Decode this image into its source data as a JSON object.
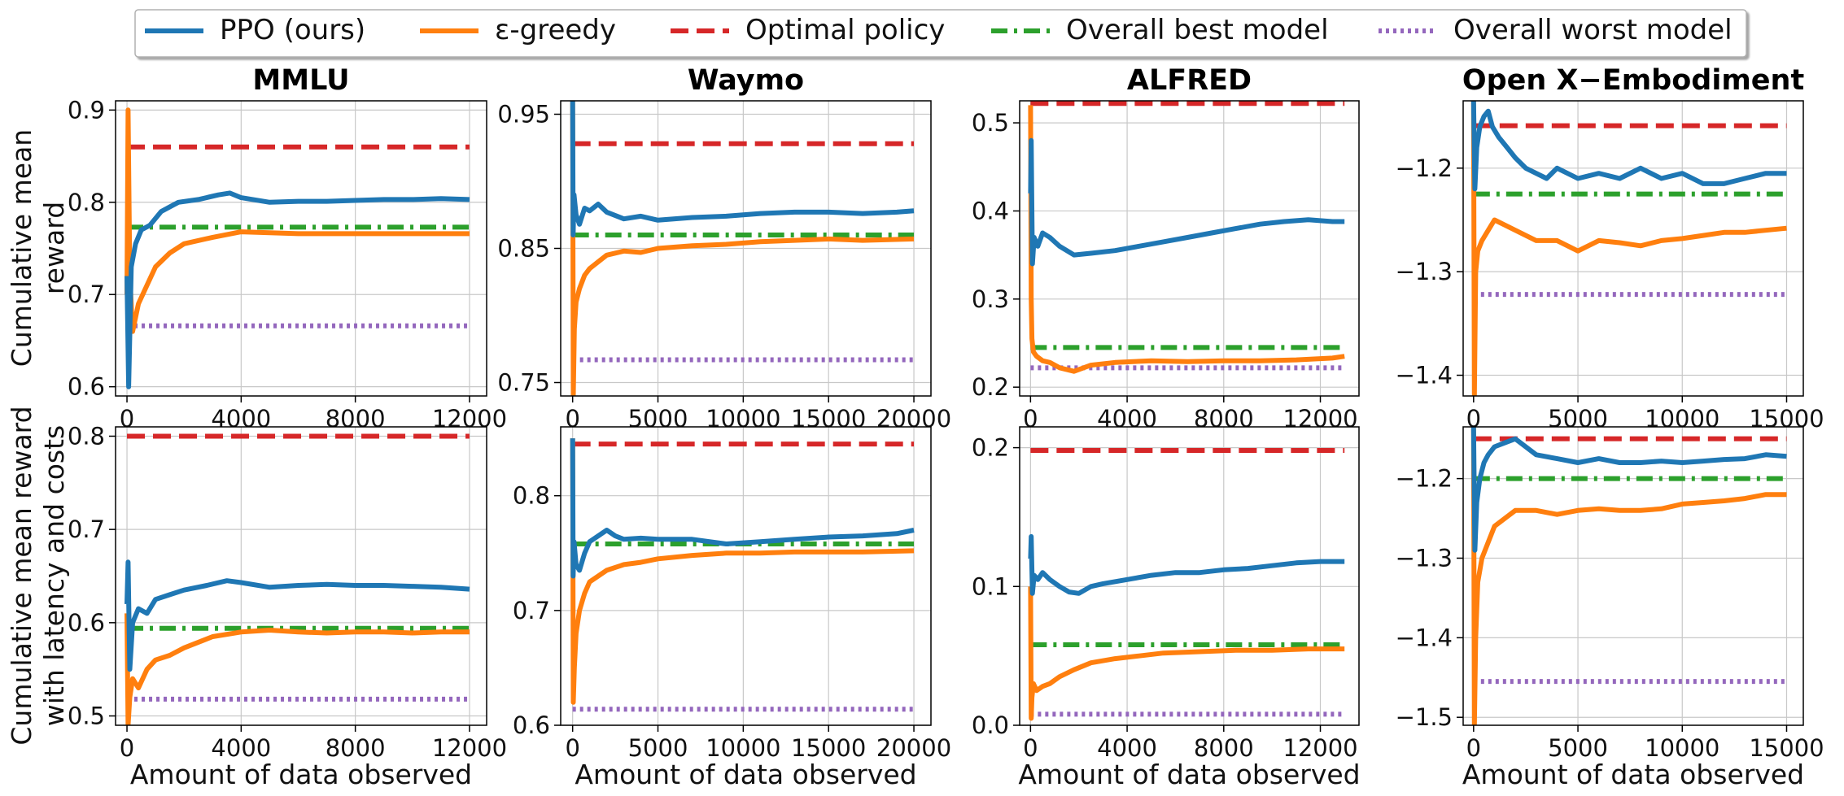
{
  "legend": {
    "entries": [
      {
        "label": "PPO (ours)",
        "color": "#1f77b4",
        "style": "solid"
      },
      {
        "label": "ε-greedy",
        "color": "#ff7f0e",
        "style": "solid"
      },
      {
        "label": "Optimal policy",
        "color": "#d62728",
        "style": "dashed"
      },
      {
        "label": "Overall best model",
        "color": "#2ca02c",
        "style": "dashdot"
      },
      {
        "label": "Overall worst model",
        "color": "#9467bd",
        "style": "dotted"
      }
    ]
  },
  "row_labels": [
    [
      "Cumulative mean",
      "reward"
    ],
    [
      "Cumulative mean reward",
      "with latency and costs"
    ]
  ],
  "xlabel": "Amount of data observed",
  "chart_data": [
    {
      "type": "line",
      "title": "MMLU",
      "row": 0,
      "col": 0,
      "xlim": [
        -400,
        12600
      ],
      "ylim": [
        0.59,
        0.91
      ],
      "xticks": [
        0,
        4000,
        8000,
        12000
      ],
      "yticks": [
        0.6,
        0.7,
        0.8,
        0.9
      ],
      "xtick_labels": [
        "0",
        "4000",
        "8000",
        "12000"
      ],
      "ytick_labels": [
        "0.6",
        "0.7",
        "0.8",
        "0.9"
      ],
      "grid": true,
      "n_max": 12000,
      "optimal": 0.86,
      "best": 0.773,
      "worst": 0.666,
      "series": [
        {
          "name": "PPO (ours)",
          "x": [
            0,
            60,
            150,
            300,
            500,
            800,
            1200,
            1800,
            2500,
            3200,
            3600,
            4000,
            5000,
            6000,
            7000,
            8000,
            9000,
            10000,
            11000,
            12000
          ],
          "y": [
            0.72,
            0.6,
            0.73,
            0.755,
            0.77,
            0.775,
            0.79,
            0.8,
            0.803,
            0.808,
            0.81,
            0.805,
            0.8,
            0.801,
            0.801,
            0.802,
            0.803,
            0.803,
            0.804,
            0.803
          ]
        },
        {
          "name": "ε-greedy",
          "x": [
            0,
            40,
            100,
            200,
            400,
            700,
            1000,
            1500,
            2000,
            3000,
            4000,
            5000,
            6000,
            8000,
            10000,
            12000
          ],
          "y": [
            0.7,
            0.9,
            0.72,
            0.66,
            0.69,
            0.71,
            0.73,
            0.745,
            0.755,
            0.762,
            0.768,
            0.767,
            0.766,
            0.766,
            0.766,
            0.766
          ]
        }
      ]
    },
    {
      "type": "line",
      "title": "Waymo",
      "row": 0,
      "col": 1,
      "xlim": [
        -700,
        21000
      ],
      "ylim": [
        0.74,
        0.96
      ],
      "xticks": [
        0,
        5000,
        10000,
        15000,
        20000
      ],
      "yticks": [
        0.75,
        0.85,
        0.95
      ],
      "xtick_labels": [
        "0",
        "5000",
        "10000",
        "15000",
        "20000"
      ],
      "ytick_labels": [
        "0.75",
        "0.85",
        "0.95"
      ],
      "grid": true,
      "n_max": 20000,
      "optimal": 0.928,
      "best": 0.86,
      "worst": 0.767,
      "series": [
        {
          "name": "PPO (ours)",
          "x": [
            0,
            30,
            80,
            200,
            400,
            700,
            1000,
            1500,
            2000,
            3000,
            4000,
            5000,
            7000,
            9000,
            11000,
            13000,
            15000,
            17000,
            19000,
            20000
          ],
          "y": [
            0.96,
            0.86,
            0.89,
            0.875,
            0.868,
            0.88,
            0.878,
            0.883,
            0.877,
            0.872,
            0.874,
            0.871,
            0.873,
            0.874,
            0.876,
            0.877,
            0.877,
            0.876,
            0.877,
            0.878
          ]
        },
        {
          "name": "ε-greedy",
          "x": [
            0,
            40,
            100,
            200,
            400,
            700,
            1000,
            1500,
            2000,
            3000,
            4000,
            5000,
            7000,
            9000,
            11000,
            13000,
            15000,
            17000,
            20000
          ],
          "y": [
            0.96,
            0.74,
            0.79,
            0.81,
            0.82,
            0.83,
            0.835,
            0.84,
            0.845,
            0.848,
            0.847,
            0.85,
            0.852,
            0.853,
            0.855,
            0.856,
            0.857,
            0.856,
            0.857
          ]
        }
      ]
    },
    {
      "type": "line",
      "title": "ALFRED",
      "row": 0,
      "col": 2,
      "xlim": [
        -450,
        13600
      ],
      "ylim": [
        0.19,
        0.525
      ],
      "xticks": [
        0,
        4000,
        8000,
        12000
      ],
      "yticks": [
        0.2,
        0.3,
        0.4,
        0.5
      ],
      "xtick_labels": [
        "0",
        "4000",
        "8000",
        "12000"
      ],
      "ytick_labels": [
        "0.2",
        "0.3",
        "0.4",
        "0.5"
      ],
      "grid": true,
      "n_max": 13000,
      "optimal": 0.522,
      "best": 0.245,
      "worst": 0.222,
      "series": [
        {
          "name": "PPO (ours)",
          "x": [
            0,
            30,
            80,
            150,
            300,
            500,
            800,
            1200,
            1800,
            2500,
            3500,
            4500,
            5500,
            6500,
            7500,
            8500,
            9500,
            10500,
            11500,
            12500,
            13000
          ],
          "y": [
            0.42,
            0.48,
            0.34,
            0.37,
            0.36,
            0.375,
            0.37,
            0.36,
            0.35,
            0.352,
            0.355,
            0.36,
            0.365,
            0.37,
            0.375,
            0.38,
            0.385,
            0.388,
            0.39,
            0.388,
            0.388
          ]
        },
        {
          "name": "ε-greedy",
          "x": [
            0,
            30,
            60,
            120,
            250,
            500,
            800,
            1200,
            1800,
            2500,
            3500,
            5000,
            6500,
            8000,
            9500,
            11000,
            12500,
            13000
          ],
          "y": [
            0.52,
            0.3,
            0.255,
            0.24,
            0.235,
            0.23,
            0.228,
            0.222,
            0.218,
            0.225,
            0.228,
            0.23,
            0.229,
            0.23,
            0.23,
            0.231,
            0.233,
            0.235
          ]
        }
      ]
    },
    {
      "type": "line",
      "title": "Open X−Embodiment",
      "row": 0,
      "col": 3,
      "xlim": [
        -500,
        15800
      ],
      "ylim": [
        -1.42,
        -1.135
      ],
      "xticks": [
        0,
        5000,
        10000,
        15000
      ],
      "yticks": [
        -1.4,
        -1.3,
        -1.2
      ],
      "xtick_labels": [
        "0",
        "5000",
        "10000",
        "15000"
      ],
      "ytick_labels": [
        "−1.4",
        "−1.3",
        "−1.2"
      ],
      "grid": true,
      "n_max": 15000,
      "optimal": -1.159,
      "best": -1.225,
      "worst": -1.322,
      "series": [
        {
          "name": "PPO (ours)",
          "x": [
            0,
            60,
            150,
            300,
            500,
            700,
            900,
            1200,
            1600,
            2000,
            2500,
            3000,
            3500,
            4000,
            5000,
            6000,
            7000,
            8000,
            9000,
            10000,
            11000,
            12000,
            13000,
            14000,
            15000
          ],
          "y": [
            -1.135,
            -1.22,
            -1.18,
            -1.16,
            -1.15,
            -1.145,
            -1.16,
            -1.17,
            -1.18,
            -1.19,
            -1.2,
            -1.205,
            -1.21,
            -1.2,
            -1.21,
            -1.205,
            -1.21,
            -1.2,
            -1.21,
            -1.205,
            -1.215,
            -1.215,
            -1.21,
            -1.205,
            -1.205
          ]
        },
        {
          "name": "ε-greedy",
          "x": [
            0,
            40,
            100,
            200,
            400,
            700,
            1000,
            1500,
            2000,
            3000,
            4000,
            5000,
            6000,
            7000,
            8000,
            9000,
            10000,
            11000,
            12000,
            13000,
            14000,
            15000
          ],
          "y": [
            -1.135,
            -1.42,
            -1.3,
            -1.28,
            -1.27,
            -1.26,
            -1.25,
            -1.255,
            -1.26,
            -1.27,
            -1.27,
            -1.28,
            -1.27,
            -1.272,
            -1.275,
            -1.27,
            -1.268,
            -1.265,
            -1.262,
            -1.262,
            -1.26,
            -1.258
          ]
        }
      ]
    },
    {
      "type": "line",
      "title": "",
      "row": 1,
      "col": 0,
      "xlim": [
        -400,
        12600
      ],
      "ylim": [
        0.49,
        0.81
      ],
      "xticks": [
        0,
        4000,
        8000,
        12000
      ],
      "yticks": [
        0.5,
        0.6,
        0.7,
        0.8
      ],
      "xtick_labels": [
        "0",
        "4000",
        "8000",
        "12000"
      ],
      "ytick_labels": [
        "0.5",
        "0.6",
        "0.7",
        "0.8"
      ],
      "grid": true,
      "n_max": 12000,
      "optimal": 0.8,
      "best": 0.594,
      "worst": 0.518,
      "series": [
        {
          "name": "PPO (ours)",
          "x": [
            0,
            40,
            100,
            200,
            400,
            700,
            1000,
            1500,
            2000,
            2800,
            3500,
            4000,
            5000,
            6000,
            7000,
            8000,
            9000,
            10000,
            11000,
            12000
          ],
          "y": [
            0.62,
            0.665,
            0.55,
            0.6,
            0.615,
            0.61,
            0.625,
            0.63,
            0.635,
            0.64,
            0.645,
            0.643,
            0.638,
            0.64,
            0.641,
            0.64,
            0.64,
            0.639,
            0.638,
            0.636
          ]
        },
        {
          "name": "ε-greedy",
          "x": [
            0,
            40,
            100,
            200,
            400,
            700,
            1000,
            1500,
            2000,
            3000,
            4000,
            5000,
            6000,
            7000,
            8000,
            9000,
            10000,
            11000,
            12000
          ],
          "y": [
            0.61,
            0.49,
            0.52,
            0.54,
            0.53,
            0.55,
            0.56,
            0.565,
            0.573,
            0.585,
            0.59,
            0.592,
            0.59,
            0.589,
            0.59,
            0.59,
            0.589,
            0.59,
            0.59
          ]
        }
      ]
    },
    {
      "type": "line",
      "title": "",
      "row": 1,
      "col": 1,
      "xlim": [
        -700,
        21000
      ],
      "ylim": [
        0.6,
        0.86
      ],
      "xticks": [
        0,
        5000,
        10000,
        15000,
        20000
      ],
      "yticks": [
        0.6,
        0.7,
        0.8
      ],
      "xtick_labels": [
        "0",
        "5000",
        "10000",
        "15000",
        "20000"
      ],
      "ytick_labels": [
        "0.6",
        "0.7",
        "0.8"
      ],
      "grid": true,
      "n_max": 20000,
      "optimal": 0.845,
      "best": 0.758,
      "worst": 0.614,
      "series": [
        {
          "name": "PPO (ours)",
          "x": [
            0,
            30,
            80,
            200,
            400,
            700,
            1000,
            1500,
            2000,
            2500,
            3000,
            4000,
            5000,
            7000,
            9000,
            11000,
            13000,
            15000,
            17000,
            19000,
            20000
          ],
          "y": [
            0.85,
            0.73,
            0.76,
            0.74,
            0.735,
            0.75,
            0.76,
            0.765,
            0.77,
            0.765,
            0.762,
            0.763,
            0.762,
            0.762,
            0.758,
            0.76,
            0.762,
            0.764,
            0.765,
            0.767,
            0.77
          ]
        },
        {
          "name": "ε-greedy",
          "x": [
            0,
            40,
            100,
            200,
            400,
            700,
            1000,
            1500,
            2000,
            3000,
            4000,
            5000,
            7000,
            9000,
            11000,
            13000,
            15000,
            17000,
            20000
          ],
          "y": [
            0.85,
            0.62,
            0.65,
            0.68,
            0.7,
            0.715,
            0.725,
            0.73,
            0.735,
            0.74,
            0.742,
            0.745,
            0.748,
            0.75,
            0.75,
            0.751,
            0.751,
            0.751,
            0.752
          ]
        }
      ]
    },
    {
      "type": "line",
      "title": "",
      "row": 1,
      "col": 2,
      "xlim": [
        -450,
        13600
      ],
      "ylim": [
        0.0,
        0.215
      ],
      "xticks": [
        0,
        4000,
        8000,
        12000
      ],
      "yticks": [
        0.0,
        0.1,
        0.2
      ],
      "xtick_labels": [
        "0",
        "4000",
        "8000",
        "12000"
      ],
      "ytick_labels": [
        "0.0",
        "0.1",
        "0.2"
      ],
      "grid": true,
      "n_max": 13000,
      "optimal": 0.198,
      "best": 0.058,
      "worst": 0.008,
      "series": [
        {
          "name": "PPO (ours)",
          "x": [
            0,
            30,
            80,
            150,
            300,
            500,
            800,
            1200,
            1600,
            2000,
            2500,
            3000,
            4000,
            5000,
            6000,
            7000,
            8000,
            9000,
            10000,
            11000,
            12000,
            13000
          ],
          "y": [
            0.12,
            0.136,
            0.095,
            0.108,
            0.105,
            0.11,
            0.105,
            0.1,
            0.096,
            0.095,
            0.1,
            0.102,
            0.105,
            0.108,
            0.11,
            0.11,
            0.112,
            0.113,
            0.115,
            0.117,
            0.118,
            0.118
          ]
        },
        {
          "name": "ε-greedy",
          "x": [
            0,
            30,
            60,
            120,
            250,
            500,
            800,
            1200,
            1800,
            2500,
            3500,
            4500,
            5500,
            7000,
            8500,
            10000,
            11500,
            13000
          ],
          "y": [
            0.1,
            0.005,
            0.02,
            0.03,
            0.025,
            0.028,
            0.03,
            0.035,
            0.04,
            0.045,
            0.048,
            0.05,
            0.052,
            0.053,
            0.054,
            0.054,
            0.055,
            0.055
          ]
        }
      ]
    },
    {
      "type": "line",
      "title": "",
      "row": 1,
      "col": 3,
      "xlim": [
        -500,
        15800
      ],
      "ylim": [
        -1.51,
        -1.135
      ],
      "xticks": [
        0,
        5000,
        10000,
        15000
      ],
      "yticks": [
        -1.5,
        -1.4,
        -1.3,
        -1.2
      ],
      "xtick_labels": [
        "0",
        "5000",
        "10000",
        "15000"
      ],
      "ytick_labels": [
        "−1.5",
        "−1.4",
        "−1.3",
        "−1.2"
      ],
      "grid": true,
      "n_max": 15000,
      "optimal": -1.15,
      "best": -1.2,
      "worst": -1.455,
      "series": [
        {
          "name": "PPO (ours)",
          "x": [
            0,
            60,
            150,
            300,
            500,
            700,
            1000,
            1500,
            2000,
            2500,
            3000,
            4000,
            5000,
            6000,
            7000,
            8000,
            9000,
            10000,
            11000,
            12000,
            13000,
            14000,
            15000
          ],
          "y": [
            -1.135,
            -1.29,
            -1.23,
            -1.2,
            -1.18,
            -1.17,
            -1.16,
            -1.155,
            -1.15,
            -1.16,
            -1.17,
            -1.175,
            -1.18,
            -1.175,
            -1.18,
            -1.18,
            -1.178,
            -1.18,
            -1.178,
            -1.176,
            -1.175,
            -1.17,
            -1.172
          ]
        },
        {
          "name": "ε-greedy",
          "x": [
            0,
            40,
            100,
            200,
            400,
            700,
            1000,
            1500,
            2000,
            3000,
            4000,
            5000,
            6000,
            7000,
            8000,
            9000,
            10000,
            11000,
            12000,
            13000,
            14000,
            15000
          ],
          "y": [
            -1.135,
            -1.51,
            -1.4,
            -1.33,
            -1.3,
            -1.28,
            -1.26,
            -1.25,
            -1.24,
            -1.24,
            -1.245,
            -1.24,
            -1.238,
            -1.24,
            -1.24,
            -1.238,
            -1.232,
            -1.23,
            -1.228,
            -1.225,
            -1.22,
            -1.22
          ]
        }
      ]
    }
  ]
}
